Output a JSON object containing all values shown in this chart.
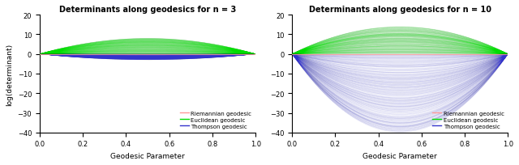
{
  "n3": {
    "title": "Determinants along geodesics for n = 3",
    "ylim": [
      -40,
      20
    ],
    "yticks": [
      -40,
      -30,
      -20,
      -10,
      0,
      10,
      20
    ],
    "green_amps": [
      0.05,
      8.0
    ],
    "blue_amps": [
      -3.0,
      -0.02
    ],
    "n_green": 800,
    "n_blue": 800,
    "seed_green": 1,
    "seed_blue": 2
  },
  "n10": {
    "title": "Determinants along geodesics for n = 10",
    "ylim": [
      -40,
      20
    ],
    "yticks": [
      -40,
      -30,
      -20,
      -10,
      0,
      10,
      20
    ],
    "green_amps": [
      0.05,
      14.0
    ],
    "blue_amps": [
      -40.0,
      -0.05
    ],
    "n_green": 800,
    "n_blue": 800,
    "seed_green": 3,
    "seed_blue": 4
  },
  "xlabel": "Geodesic Parameter",
  "ylabel": "log(determinant)",
  "red_color": "#ff9999",
  "green_color": "#00dd00",
  "blue_color": "#3333cc",
  "alpha_green": 0.04,
  "alpha_blue": 0.04,
  "alpha_red": 0.8,
  "lw_curves": 0.3,
  "lw_red": 0.8,
  "n_points": 300,
  "legend_labels": [
    "Riemannian geodesic",
    "Euclidean geodesic",
    "Thompson geodesic"
  ],
  "figsize": [
    6.4,
    2.05
  ],
  "dpi": 100
}
